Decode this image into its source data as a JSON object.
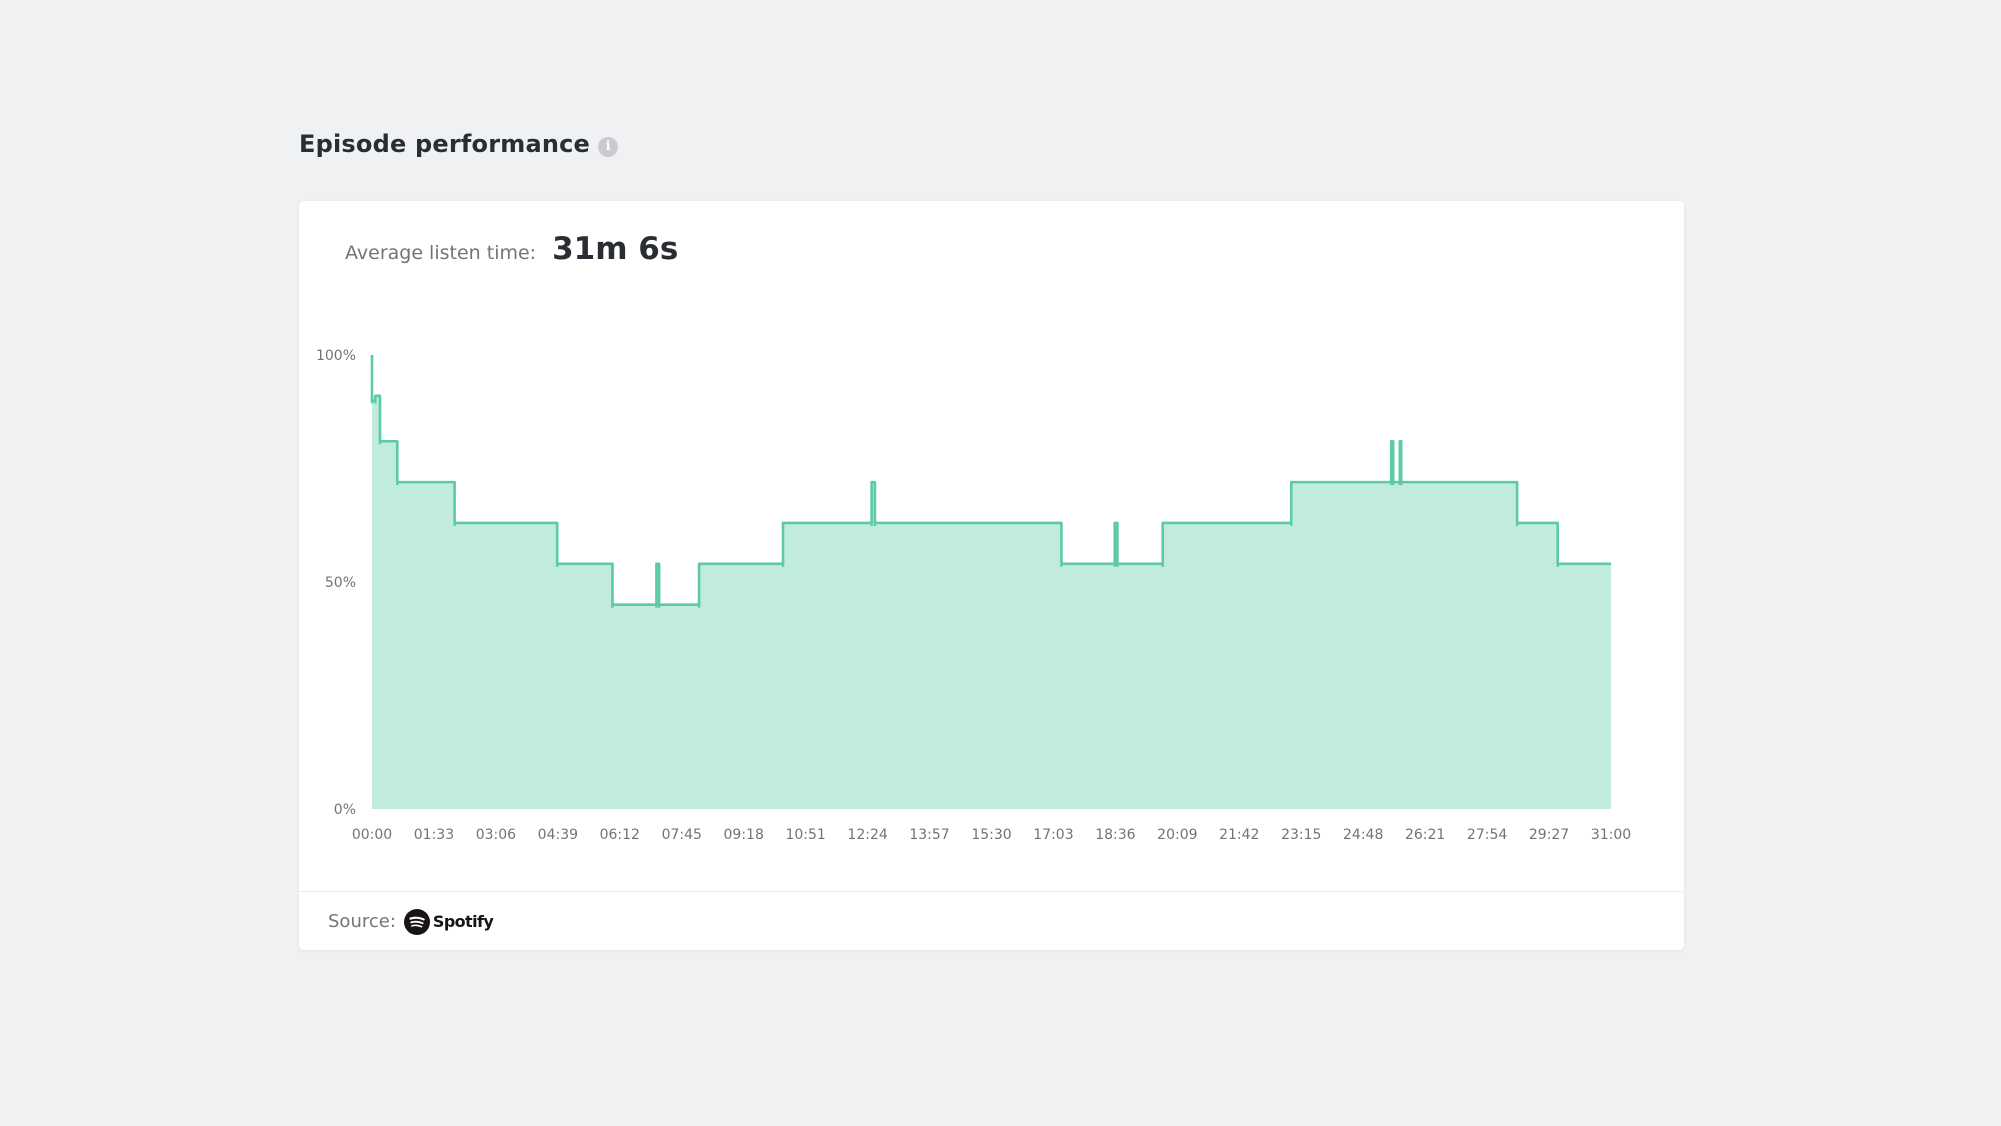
{
  "header": {
    "title": "Episode performance",
    "info_icon": "info-icon",
    "info_glyph": "i"
  },
  "summary": {
    "label": "Average listen time:",
    "value": "31m 6s"
  },
  "footer": {
    "source_label": "Source:",
    "source_name": "Spotify",
    "source_icon": "spotify-icon"
  },
  "colors": {
    "line": "#5ccaa6",
    "fill": "#c2ebe0",
    "background": "#f0f1f2",
    "card": "#ffffff"
  },
  "chart_data": {
    "type": "area",
    "title": "",
    "xlabel": "",
    "ylabel": "",
    "ylim": [
      0,
      100
    ],
    "xlim": [
      0,
      1860
    ],
    "y_ticks": [
      "0%",
      "50%",
      "100%"
    ],
    "y_tick_values": [
      0,
      50,
      100
    ],
    "x_ticks": [
      "00:00",
      "01:33",
      "03:06",
      "04:39",
      "06:12",
      "07:45",
      "09:18",
      "10:51",
      "12:24",
      "13:57",
      "15:30",
      "17:03",
      "18:36",
      "20:09",
      "21:42",
      "23:15",
      "24:48",
      "26:21",
      "27:54",
      "29:27",
      "31:00"
    ],
    "x_unit": "seconds",
    "grid": false,
    "legend": "none",
    "series": [
      {
        "x": [
          0,
          0,
          5,
          5,
          12,
          12,
          16,
          16,
          38,
          38,
          124,
          124,
          278,
          278,
          361,
          361,
          427,
          427,
          431,
          431,
          440,
          440,
          491,
          491,
          617,
          617,
          750,
          750,
          755,
          755,
          1035,
          1035,
          1115,
          1115,
          1119,
          1119,
          1187,
          1187,
          1380,
          1380,
          1530,
          1530,
          1533,
          1533,
          1543,
          1543,
          1545,
          1545,
          1719,
          1719,
          1780,
          1780,
          1860
        ],
        "y": [
          100,
          90,
          90,
          91,
          91,
          81,
          81,
          81,
          81,
          72,
          72,
          63,
          63,
          54,
          54,
          45,
          45,
          54,
          54,
          45,
          45,
          45,
          45,
          54,
          54,
          63,
          63,
          72,
          72,
          63,
          63,
          54,
          54,
          63,
          63,
          54,
          54,
          63,
          63,
          72,
          72,
          81,
          81,
          72,
          72,
          81,
          81,
          72,
          72,
          63,
          63,
          54,
          54
        ]
      }
    ]
  }
}
